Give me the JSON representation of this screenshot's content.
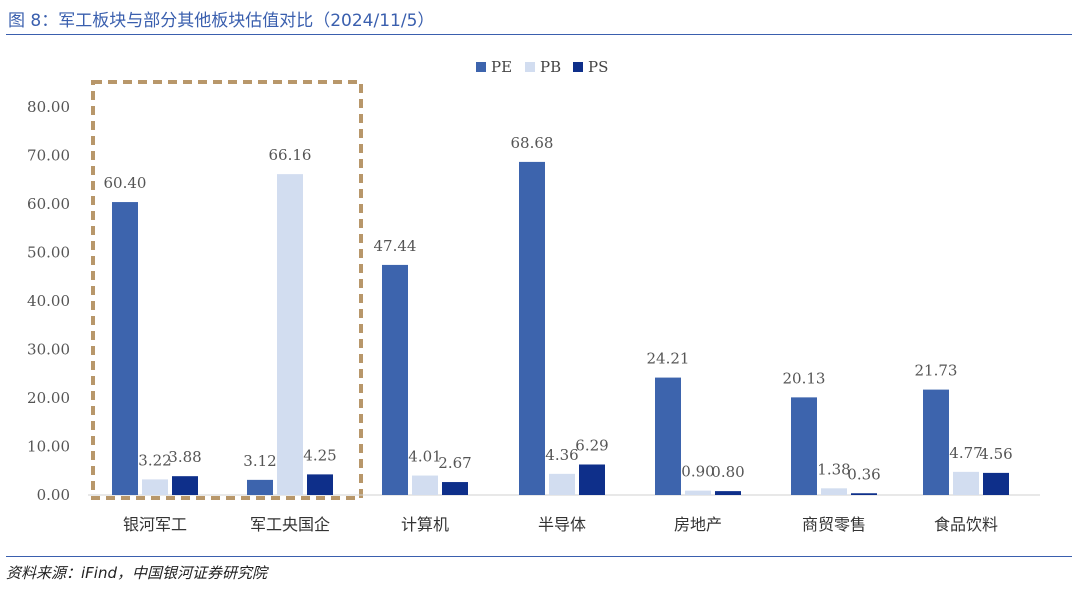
{
  "header": {
    "title": "图 8：军工板块与部分其他板块估值对比（2024/11/5）"
  },
  "footer": {
    "source": "资料来源：iFind，中国银河证券研究院"
  },
  "colors": {
    "PE": "#3d64ad",
    "PB": "#d2ddf0",
    "PS": "#0e2f8a",
    "highlight_box": "#b8976a",
    "rule": "#3a5fae"
  },
  "chart_data": {
    "type": "bar",
    "title": "",
    "xlabel": "",
    "ylabel": "",
    "categories": [
      "银河军工",
      "军工央国企",
      "计算机",
      "半导体",
      "房地产",
      "商贸零售",
      "食品饮料"
    ],
    "series": [
      {
        "name": "PE",
        "values": [
          60.4,
          3.12,
          47.44,
          68.68,
          24.21,
          20.13,
          21.73
        ]
      },
      {
        "name": "PB",
        "values": [
          3.22,
          66.16,
          4.01,
          4.36,
          0.9,
          1.38,
          4.77
        ]
      },
      {
        "name": "PS",
        "values": [
          3.88,
          4.25,
          2.67,
          6.29,
          0.8,
          0.36,
          4.56
        ]
      }
    ],
    "ylim": [
      0,
      80
    ],
    "yticks": [
      "0.00",
      "10.00",
      "20.00",
      "30.00",
      "40.00",
      "50.00",
      "60.00",
      "70.00",
      "80.00"
    ],
    "grid": false,
    "legend_position": "top-center",
    "highlight": {
      "categories": [
        "银河军工",
        "军工央国企"
      ],
      "style": "dashed box"
    }
  }
}
